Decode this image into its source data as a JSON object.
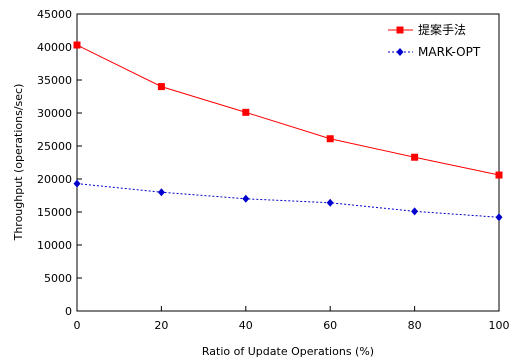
{
  "chart_data": {
    "type": "line",
    "title": "",
    "xlabel": "Ratio of Update Operations (%)",
    "ylabel": "Throughput (operations/sec)",
    "x": [
      0,
      20,
      40,
      60,
      80,
      100
    ],
    "xlim": [
      0,
      100
    ],
    "xticks": [
      0,
      20,
      40,
      60,
      80,
      100
    ],
    "ylim": [
      0,
      45000
    ],
    "yticks": [
      0,
      5000,
      10000,
      15000,
      20000,
      25000,
      30000,
      35000,
      40000,
      45000
    ],
    "grid": false,
    "legend": "top-right",
    "series": [
      {
        "name": "提案手法",
        "values": [
          40300,
          34000,
          30100,
          26100,
          23300,
          20600
        ],
        "color": "#ff0000",
        "marker": "square",
        "line": "solid"
      },
      {
        "name": "MARK-OPT",
        "values": [
          19300,
          18000,
          17000,
          16400,
          15100,
          14200
        ],
        "color": "#0000cc",
        "marker": "diamond",
        "line": "dotted"
      }
    ]
  }
}
